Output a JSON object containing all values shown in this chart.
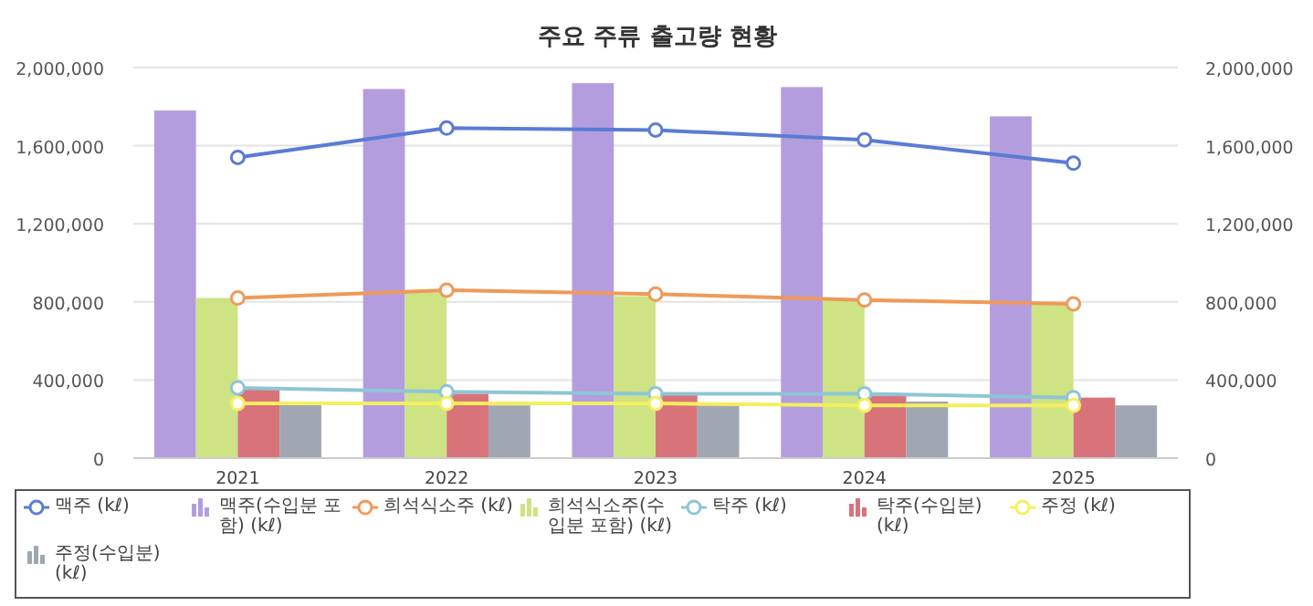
{
  "chart_data": {
    "type": "bar",
    "title": "주요 주류 출고량 현황",
    "categories": [
      "2021",
      "2022",
      "2023",
      "2024",
      "2025"
    ],
    "series": [
      {
        "name": "맥주 (kℓ)",
        "type": "line",
        "color": "#5b7bd5",
        "values": [
          1540000,
          1690000,
          1680000,
          1630000,
          1510000
        ]
      },
      {
        "name": "맥주(수입분 포함) (kℓ)",
        "color": "#b39ddf",
        "values": [
          1780000,
          1890000,
          1920000,
          1900000,
          1750000
        ]
      },
      {
        "name": "희석식소주 (kℓ)",
        "type": "line",
        "color": "#ee9a5a",
        "values": [
          820000,
          860000,
          840000,
          810000,
          790000
        ]
      },
      {
        "name": "희석식소주(수입분 포함) (kℓ)",
        "color": "#cde384",
        "values": [
          820000,
          850000,
          830000,
          810000,
          790000
        ]
      },
      {
        "name": "탁주 (kℓ)",
        "type": "line",
        "color": "#8ec5d6",
        "values": [
          360000,
          340000,
          330000,
          330000,
          310000
        ]
      },
      {
        "name": "탁주(수입분) (kℓ)",
        "color": "#d9737a",
        "values": [
          350000,
          330000,
          330000,
          320000,
          310000
        ]
      },
      {
        "name": "주정 (kℓ)",
        "type": "line",
        "color": "#f5ef5e",
        "values": [
          280000,
          280000,
          280000,
          270000,
          270000
        ]
      },
      {
        "name": "주정(수입분) (kℓ)",
        "color": "#a0a7b3",
        "values": [
          280000,
          270000,
          270000,
          290000,
          270000
        ]
      }
    ],
    "ylim": [
      0,
      2000000
    ],
    "yticks": [
      {
        "value": 0,
        "label": "0"
      },
      {
        "value": 400000,
        "label": "400,000"
      },
      {
        "value": 800000,
        "label": "800,000"
      },
      {
        "value": 1200000,
        "label": "1,200,000"
      },
      {
        "value": 1600000,
        "label": "1,600,000"
      },
      {
        "value": 2000000,
        "label": "2,000,000"
      }
    ],
    "y2lim": [
      0,
      2000000
    ],
    "y2ticks": [
      {
        "value": 0,
        "label": "0"
      },
      {
        "value": 400000,
        "label": "400,000"
      },
      {
        "value": 800000,
        "label": "800,000"
      },
      {
        "value": 1200000,
        "label": "1,200,000"
      },
      {
        "value": 1600000,
        "label": "1,600,000"
      },
      {
        "value": 2000000,
        "label": "2,000,000"
      }
    ],
    "grid": "y",
    "legend": "bottom",
    "marker": "circle"
  }
}
